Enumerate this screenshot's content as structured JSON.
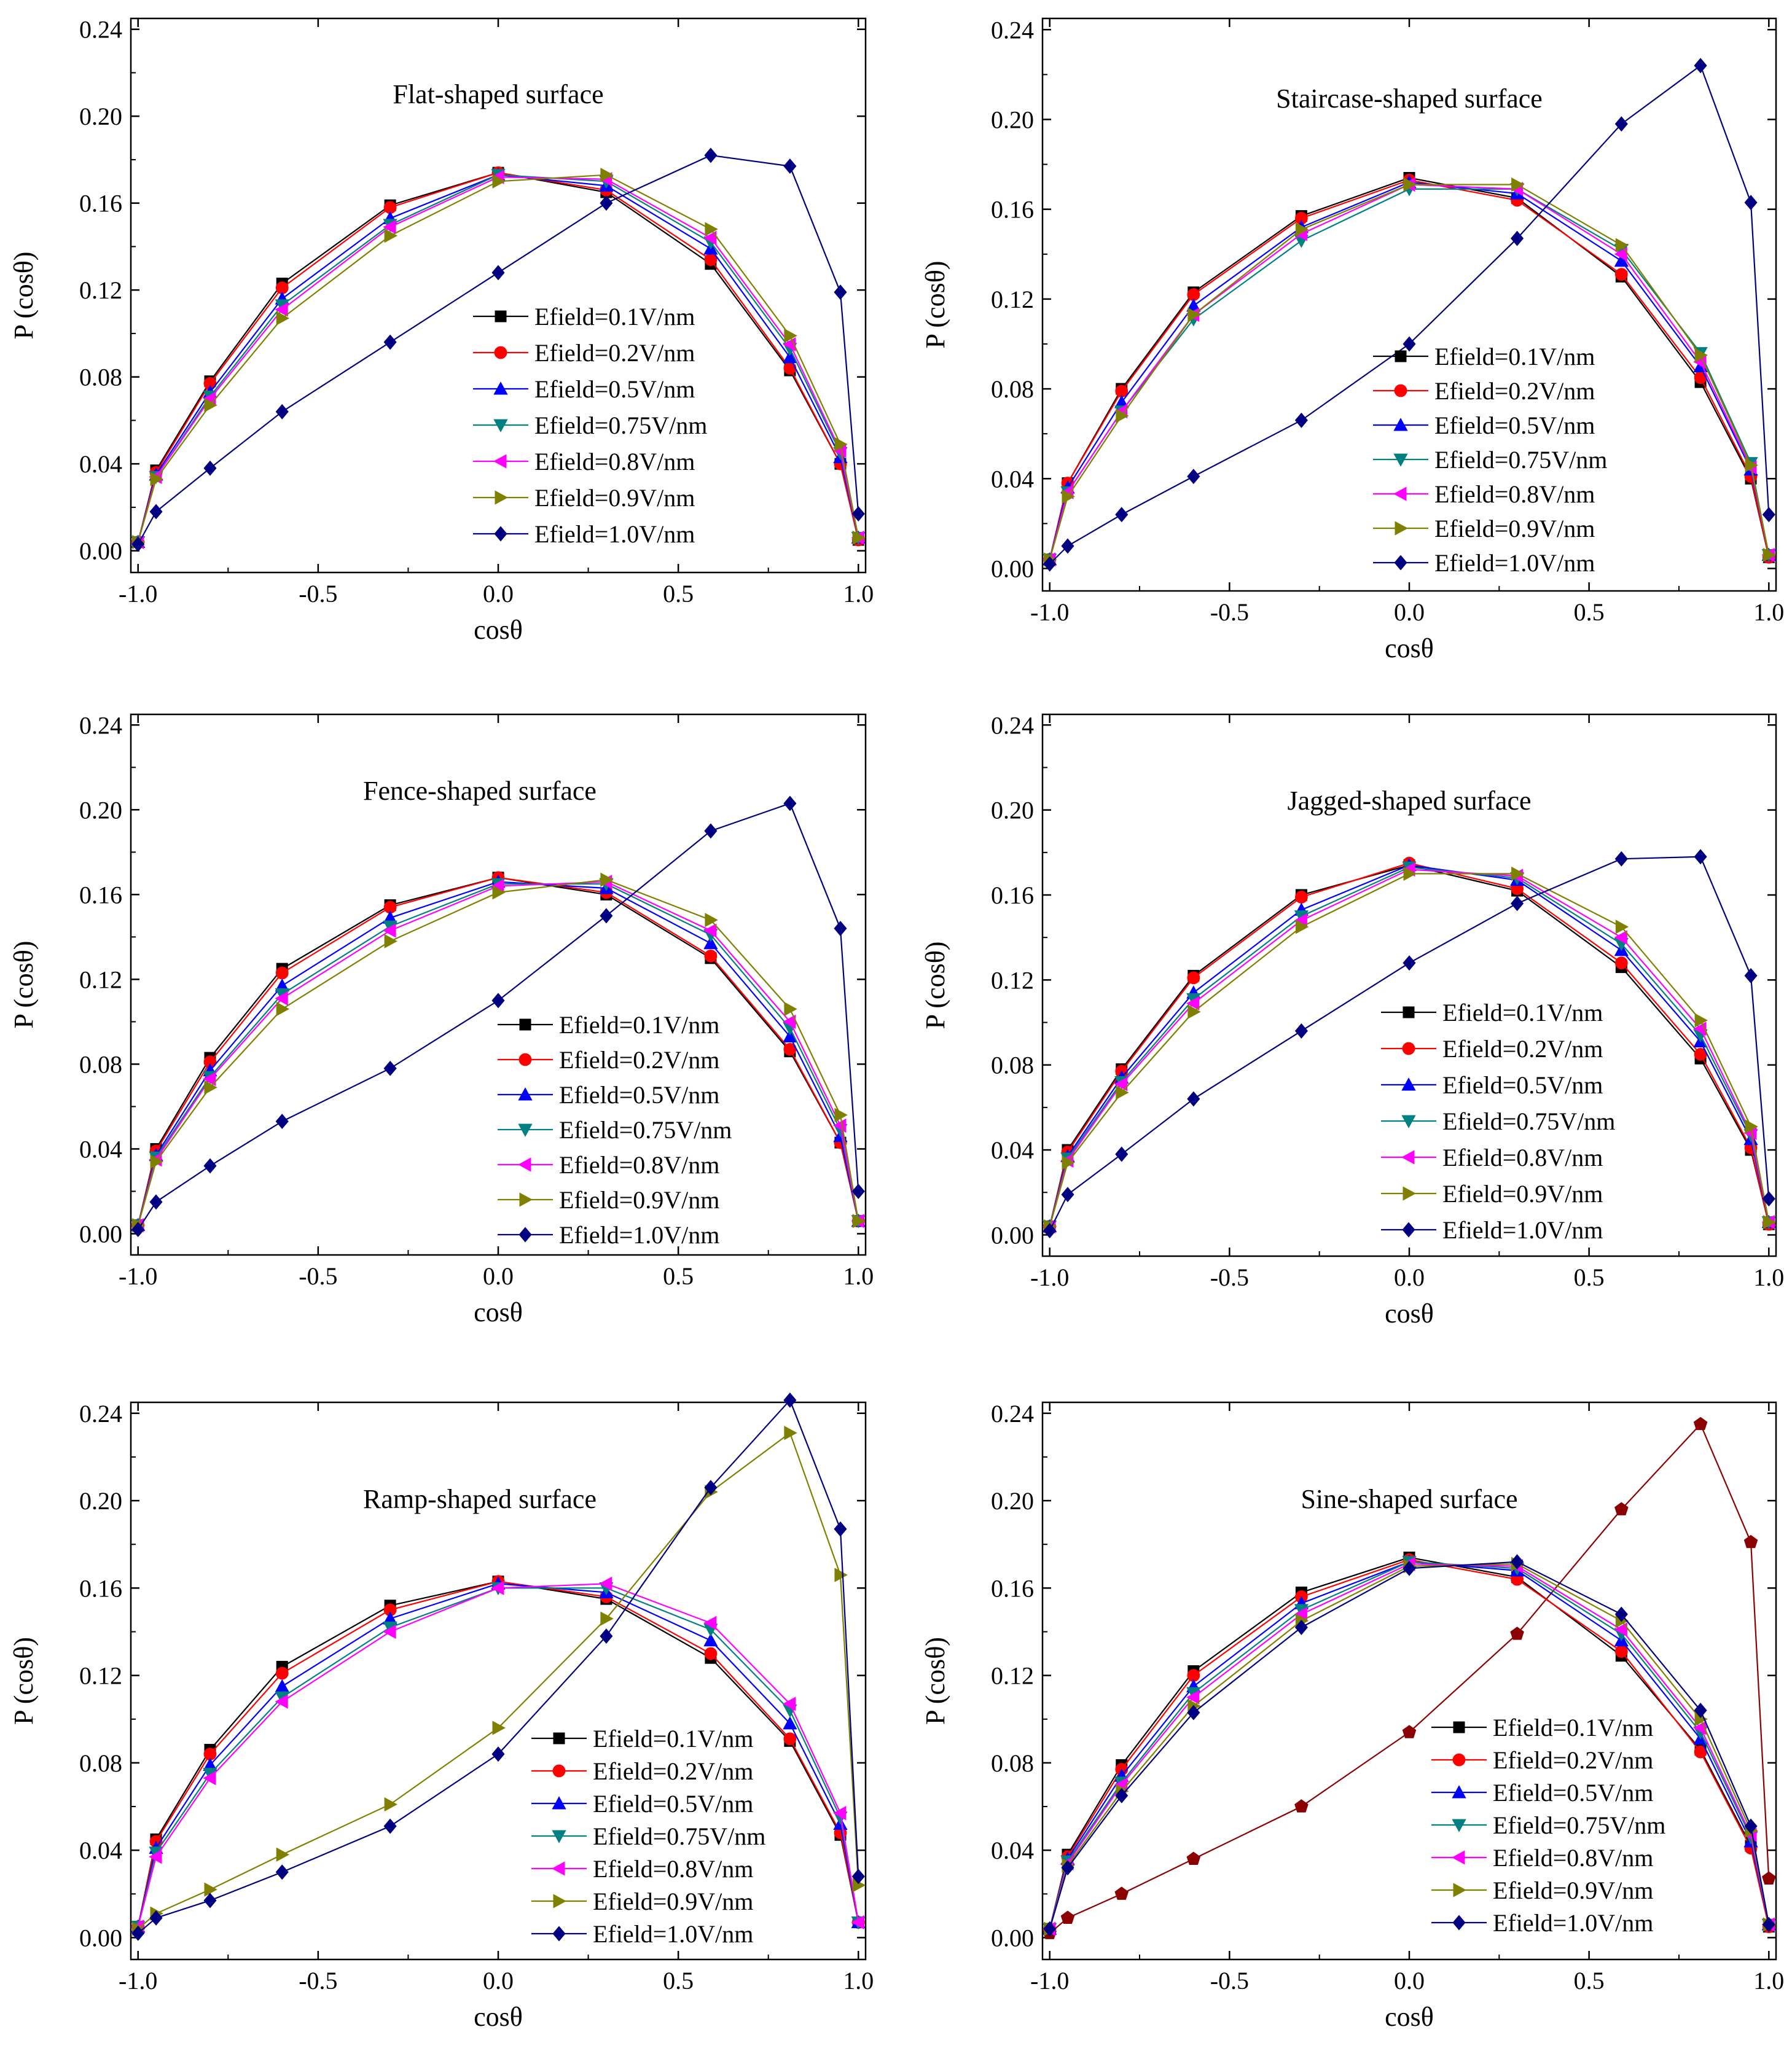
{
  "chart_data": [
    {
      "type": "line",
      "title": "Flat-shaped surface",
      "xlabel": "cosθ",
      "ylabel": "P (cosθ)",
      "xlim": [
        -1.0,
        1.0
      ],
      "ylim": [
        -0.01,
        0.245
      ],
      "xticks": [
        "-1.0",
        "-0.5",
        "0.0",
        "0.5",
        "1.0"
      ],
      "yticks": [
        "0.00",
        "0.04",
        "0.08",
        "0.12",
        "0.16",
        "0.20",
        "0.24"
      ],
      "x": [
        -1.0,
        -0.95,
        -0.8,
        -0.6,
        -0.3,
        0.0,
        0.3,
        0.59,
        0.81,
        0.95,
        1.0
      ],
      "legend_position": "center-right",
      "series": [
        {
          "name": "Efield=0.1V/nm",
          "color": "#000000",
          "marker": "square",
          "values": [
            0.004,
            0.037,
            0.078,
            0.123,
            0.159,
            0.174,
            0.165,
            0.132,
            0.083,
            0.04,
            0.005
          ]
        },
        {
          "name": "Efield=0.2V/nm",
          "color": "#ff0000",
          "marker": "circle",
          "values": [
            0.004,
            0.036,
            0.077,
            0.121,
            0.158,
            0.174,
            0.166,
            0.134,
            0.084,
            0.04,
            0.005
          ]
        },
        {
          "name": "Efield=0.5V/nm",
          "color": "#0000ff",
          "marker": "triangle-up",
          "values": [
            0.004,
            0.035,
            0.073,
            0.116,
            0.153,
            0.173,
            0.168,
            0.139,
            0.089,
            0.043,
            0.006
          ]
        },
        {
          "name": "Efield=0.75V/nm",
          "color": "#008080",
          "marker": "triangle-down",
          "values": [
            0.004,
            0.034,
            0.071,
            0.113,
            0.15,
            0.173,
            0.17,
            0.142,
            0.093,
            0.045,
            0.006
          ]
        },
        {
          "name": "Efield=0.8V/nm",
          "color": "#ff00ff",
          "marker": "triangle-left",
          "values": [
            0.004,
            0.034,
            0.07,
            0.111,
            0.149,
            0.172,
            0.171,
            0.144,
            0.095,
            0.046,
            0.006
          ]
        },
        {
          "name": "Efield=0.9V/nm",
          "color": "#808000",
          "marker": "triangle-right",
          "values": [
            0.004,
            0.033,
            0.067,
            0.107,
            0.145,
            0.17,
            0.173,
            0.148,
            0.099,
            0.049,
            0.006
          ]
        },
        {
          "name": "Efield=1.0V/nm",
          "color": "#000080",
          "marker": "diamond",
          "values": [
            0.003,
            0.018,
            0.038,
            0.064,
            0.096,
            0.128,
            0.16,
            0.182,
            0.177,
            0.119,
            0.017
          ]
        }
      ]
    },
    {
      "type": "line",
      "title": "Staircase-shaped surface",
      "xlabel": "cosθ",
      "ylabel": "P (cosθ)",
      "xlim": [
        -1.0,
        1.0
      ],
      "ylim": [
        -0.01,
        0.245
      ],
      "xticks": [
        "-1.0",
        "-0.5",
        "0.0",
        "0.5",
        "1.0"
      ],
      "yticks": [
        "0.00",
        "0.04",
        "0.08",
        "0.12",
        "0.16",
        "0.20",
        "0.24"
      ],
      "x": [
        -1.0,
        -0.95,
        -0.8,
        -0.6,
        -0.3,
        0.0,
        0.3,
        0.59,
        0.81,
        0.95,
        1.0
      ],
      "legend_position": "lower-right",
      "series": [
        {
          "name": "Efield=0.1V/nm",
          "color": "#000000",
          "marker": "square",
          "values": [
            0.004,
            0.038,
            0.08,
            0.123,
            0.157,
            0.174,
            0.165,
            0.13,
            0.083,
            0.04,
            0.005
          ]
        },
        {
          "name": "Efield=0.2V/nm",
          "color": "#ff0000",
          "marker": "circle",
          "values": [
            0.004,
            0.038,
            0.079,
            0.122,
            0.156,
            0.173,
            0.164,
            0.131,
            0.085,
            0.041,
            0.005
          ]
        },
        {
          "name": "Efield=0.5V/nm",
          "color": "#0000ff",
          "marker": "triangle-up",
          "values": [
            0.004,
            0.036,
            0.074,
            0.117,
            0.152,
            0.172,
            0.167,
            0.137,
            0.09,
            0.044,
            0.006
          ]
        },
        {
          "name": "Efield=0.75V/nm",
          "color": "#008080",
          "marker": "triangle-down",
          "values": [
            0.004,
            0.034,
            0.07,
            0.111,
            0.146,
            0.169,
            0.169,
            0.142,
            0.096,
            0.047,
            0.006
          ]
        },
        {
          "name": "Efield=0.8V/nm",
          "color": "#ff00ff",
          "marker": "triangle-left",
          "values": [
            0.004,
            0.034,
            0.07,
            0.113,
            0.149,
            0.171,
            0.169,
            0.14,
            0.092,
            0.045,
            0.006
          ]
        },
        {
          "name": "Efield=0.9V/nm",
          "color": "#808000",
          "marker": "triangle-right",
          "values": [
            0.004,
            0.032,
            0.068,
            0.113,
            0.151,
            0.171,
            0.171,
            0.144,
            0.095,
            0.046,
            0.006
          ]
        },
        {
          "name": "Efield=1.0V/nm",
          "color": "#000080",
          "marker": "diamond",
          "values": [
            0.002,
            0.01,
            0.024,
            0.041,
            0.066,
            0.1,
            0.147,
            0.198,
            0.224,
            0.163,
            0.024
          ]
        }
      ]
    },
    {
      "type": "line",
      "title": "Fence-shaped surface",
      "xlabel": "cosθ",
      "ylabel": "P (cosθ)",
      "xlim": [
        -1.0,
        1.0
      ],
      "ylim": [
        -0.01,
        0.245
      ],
      "xticks": [
        "-1.0",
        "-0.5",
        "0.0",
        "0.5",
        "1.0"
      ],
      "yticks": [
        "0.00",
        "0.04",
        "0.08",
        "0.12",
        "0.16",
        "0.20",
        "0.24"
      ],
      "x": [
        -1.0,
        -0.95,
        -0.8,
        -0.6,
        -0.3,
        0.0,
        0.3,
        0.59,
        0.81,
        0.95,
        1.0
      ],
      "legend_position": "lower-right",
      "series": [
        {
          "name": "Efield=0.1V/nm",
          "color": "#000000",
          "marker": "square",
          "values": [
            0.004,
            0.04,
            0.083,
            0.125,
            0.155,
            0.168,
            0.16,
            0.13,
            0.086,
            0.043,
            0.006
          ]
        },
        {
          "name": "Efield=0.2V/nm",
          "color": "#ff0000",
          "marker": "circle",
          "values": [
            0.004,
            0.039,
            0.081,
            0.123,
            0.154,
            0.168,
            0.161,
            0.131,
            0.087,
            0.043,
            0.006
          ]
        },
        {
          "name": "Efield=0.5V/nm",
          "color": "#0000ff",
          "marker": "triangle-up",
          "values": [
            0.004,
            0.037,
            0.077,
            0.117,
            0.149,
            0.166,
            0.163,
            0.137,
            0.093,
            0.046,
            0.006
          ]
        },
        {
          "name": "Efield=0.75V/nm",
          "color": "#008080",
          "marker": "triangle-down",
          "values": [
            0.004,
            0.036,
            0.074,
            0.113,
            0.145,
            0.165,
            0.165,
            0.141,
            0.097,
            0.049,
            0.006
          ]
        },
        {
          "name": "Efield=0.8V/nm",
          "color": "#ff00ff",
          "marker": "triangle-left",
          "values": [
            0.004,
            0.035,
            0.073,
            0.111,
            0.143,
            0.164,
            0.166,
            0.143,
            0.1,
            0.051,
            0.006
          ]
        },
        {
          "name": "Efield=0.9V/nm",
          "color": "#808000",
          "marker": "triangle-right",
          "values": [
            0.004,
            0.034,
            0.069,
            0.106,
            0.138,
            0.161,
            0.167,
            0.148,
            0.106,
            0.056,
            0.006
          ]
        },
        {
          "name": "Efield=1.0V/nm",
          "color": "#000080",
          "marker": "diamond",
          "values": [
            0.002,
            0.015,
            0.032,
            0.053,
            0.078,
            0.11,
            0.15,
            0.19,
            0.203,
            0.144,
            0.02
          ]
        }
      ]
    },
    {
      "type": "line",
      "title": "Jagged-shaped surface",
      "xlabel": "cosθ",
      "ylabel": "P (cosθ)",
      "xlim": [
        -1.0,
        1.0
      ],
      "ylim": [
        -0.01,
        0.245
      ],
      "xticks": [
        "-1.0",
        "-0.5",
        "0.0",
        "0.5",
        "1.0"
      ],
      "yticks": [
        "0.00",
        "0.04",
        "0.08",
        "0.12",
        "0.16",
        "0.20",
        "0.24"
      ],
      "x": [
        -1.0,
        -0.95,
        -0.8,
        -0.6,
        -0.3,
        0.0,
        0.3,
        0.59,
        0.81,
        0.95,
        1.0
      ],
      "legend_position": "lower-right",
      "series": [
        {
          "name": "Efield=0.1V/nm",
          "color": "#000000",
          "marker": "square",
          "values": [
            0.004,
            0.04,
            0.078,
            0.122,
            0.16,
            0.174,
            0.162,
            0.126,
            0.083,
            0.04,
            0.005
          ]
        },
        {
          "name": "Efield=0.2V/nm",
          "color": "#ff0000",
          "marker": "circle",
          "values": [
            0.004,
            0.039,
            0.077,
            0.121,
            0.159,
            0.175,
            0.163,
            0.128,
            0.085,
            0.041,
            0.005
          ]
        },
        {
          "name": "Efield=0.5V/nm",
          "color": "#0000ff",
          "marker": "triangle-up",
          "values": [
            0.004,
            0.037,
            0.074,
            0.114,
            0.153,
            0.174,
            0.167,
            0.134,
            0.091,
            0.045,
            0.006
          ]
        },
        {
          "name": "Efield=0.75V/nm",
          "color": "#008080",
          "marker": "triangle-down",
          "values": [
            0.004,
            0.036,
            0.072,
            0.111,
            0.15,
            0.173,
            0.168,
            0.137,
            0.094,
            0.047,
            0.006
          ]
        },
        {
          "name": "Efield=0.8V/nm",
          "color": "#ff00ff",
          "marker": "triangle-left",
          "values": [
            0.004,
            0.035,
            0.071,
            0.109,
            0.148,
            0.172,
            0.169,
            0.14,
            0.097,
            0.048,
            0.006
          ]
        },
        {
          "name": "Efield=0.9V/nm",
          "color": "#808000",
          "marker": "triangle-right",
          "values": [
            0.004,
            0.034,
            0.067,
            0.105,
            0.145,
            0.17,
            0.17,
            0.145,
            0.101,
            0.051,
            0.006
          ]
        },
        {
          "name": "Efield=1.0V/nm",
          "color": "#000080",
          "marker": "diamond",
          "values": [
            0.002,
            0.019,
            0.038,
            0.064,
            0.096,
            0.128,
            0.156,
            0.177,
            0.178,
            0.122,
            0.017
          ]
        }
      ]
    },
    {
      "type": "line",
      "title": "Ramp-shaped surface",
      "xlabel": "cosθ",
      "ylabel": "P (cosθ)",
      "xlim": [
        -1.0,
        1.0
      ],
      "ylim": [
        -0.01,
        0.245
      ],
      "xticks": [
        "-1.0",
        "-0.5",
        "0.0",
        "0.5",
        "1.0"
      ],
      "yticks": [
        "0.00",
        "0.04",
        "0.08",
        "0.12",
        "0.16",
        "0.20",
        "0.24"
      ],
      "x": [
        -1.0,
        -0.95,
        -0.8,
        -0.6,
        -0.3,
        0.0,
        0.3,
        0.59,
        0.81,
        0.95,
        1.0
      ],
      "legend_position": "lower-right",
      "series": [
        {
          "name": "Efield=0.1V/nm",
          "color": "#000000",
          "marker": "square",
          "values": [
            0.005,
            0.045,
            0.086,
            0.124,
            0.152,
            0.163,
            0.155,
            0.128,
            0.09,
            0.047,
            0.007
          ]
        },
        {
          "name": "Efield=0.2V/nm",
          "color": "#ff0000",
          "marker": "circle",
          "values": [
            0.005,
            0.044,
            0.084,
            0.121,
            0.15,
            0.163,
            0.156,
            0.13,
            0.091,
            0.048,
            0.007
          ]
        },
        {
          "name": "Efield=0.5V/nm",
          "color": "#0000ff",
          "marker": "triangle-up",
          "values": [
            0.005,
            0.041,
            0.079,
            0.115,
            0.146,
            0.162,
            0.158,
            0.136,
            0.098,
            0.052,
            0.007
          ]
        },
        {
          "name": "Efield=0.75V/nm",
          "color": "#008080",
          "marker": "triangle-down",
          "values": [
            0.005,
            0.039,
            0.075,
            0.11,
            0.142,
            0.16,
            0.16,
            0.141,
            0.104,
            0.055,
            0.007
          ]
        },
        {
          "name": "Efield=0.8V/nm",
          "color": "#ff00ff",
          "marker": "triangle-left",
          "values": [
            0.005,
            0.037,
            0.073,
            0.108,
            0.14,
            0.16,
            0.162,
            0.144,
            0.107,
            0.057,
            0.007
          ]
        },
        {
          "name": "Efield=0.9V/nm",
          "color": "#808000",
          "marker": "triangle-right",
          "values": [
            0.004,
            0.011,
            0.022,
            0.038,
            0.061,
            0.096,
            0.146,
            0.204,
            0.231,
            0.166,
            0.024
          ]
        },
        {
          "name": "Efield=1.0V/nm",
          "color": "#000080",
          "marker": "diamond",
          "values": [
            0.002,
            0.009,
            0.017,
            0.03,
            0.051,
            0.084,
            0.138,
            0.206,
            0.246,
            0.187,
            0.028
          ]
        }
      ]
    },
    {
      "type": "line",
      "title": "Sine-shaped surface",
      "xlabel": "cosθ",
      "ylabel": "P (cosθ)",
      "xlim": [
        -1.0,
        1.0
      ],
      "ylim": [
        -0.01,
        0.245
      ],
      "xticks": [
        "-1.0",
        "-0.5",
        "0.0",
        "0.5",
        "1.0"
      ],
      "yticks": [
        "0.00",
        "0.04",
        "0.08",
        "0.12",
        "0.16",
        "0.20",
        "0.24"
      ],
      "x": [
        -1.0,
        -0.95,
        -0.8,
        -0.6,
        -0.3,
        0.0,
        0.3,
        0.59,
        0.81,
        0.95,
        1.0
      ],
      "legend_position": "lower-right",
      "extra_series": {
        "color": "#8b0000",
        "marker": "pentagon",
        "values": [
          0.002,
          0.009,
          0.02,
          0.036,
          0.06,
          0.094,
          0.139,
          0.196,
          0.235,
          0.181,
          0.027
        ]
      },
      "series": [
        {
          "name": "Efield=0.1V/nm",
          "color": "#000000",
          "marker": "square",
          "values": [
            0.004,
            0.038,
            0.079,
            0.122,
            0.158,
            0.174,
            0.165,
            0.129,
            0.086,
            0.042,
            0.005
          ]
        },
        {
          "name": "Efield=0.2V/nm",
          "color": "#ff0000",
          "marker": "circle",
          "values": [
            0.004,
            0.037,
            0.077,
            0.12,
            0.156,
            0.173,
            0.164,
            0.131,
            0.085,
            0.041,
            0.005
          ]
        },
        {
          "name": "Efield=0.5V/nm",
          "color": "#0000ff",
          "marker": "triangle-up",
          "values": [
            0.004,
            0.036,
            0.074,
            0.115,
            0.153,
            0.172,
            0.168,
            0.136,
            0.091,
            0.044,
            0.006
          ]
        },
        {
          "name": "Efield=0.75V/nm",
          "color": "#008080",
          "marker": "triangle-down",
          "values": [
            0.004,
            0.035,
            0.071,
            0.112,
            0.15,
            0.172,
            0.169,
            0.139,
            0.094,
            0.046,
            0.006
          ]
        },
        {
          "name": "Efield=0.8V/nm",
          "color": "#ff00ff",
          "marker": "triangle-left",
          "values": [
            0.004,
            0.034,
            0.07,
            0.11,
            0.148,
            0.171,
            0.17,
            0.141,
            0.096,
            0.047,
            0.006
          ]
        },
        {
          "name": "Efield=0.9V/nm",
          "color": "#808000",
          "marker": "triangle-right",
          "values": [
            0.004,
            0.033,
            0.067,
            0.106,
            0.145,
            0.17,
            0.171,
            0.145,
            0.1,
            0.049,
            0.006
          ]
        },
        {
          "name": "Efield=1.0V/nm",
          "color": "#000080",
          "marker": "diamond",
          "values": [
            0.004,
            0.032,
            0.065,
            0.103,
            0.142,
            0.169,
            0.172,
            0.148,
            0.104,
            0.051,
            0.006
          ]
        }
      ]
    }
  ]
}
